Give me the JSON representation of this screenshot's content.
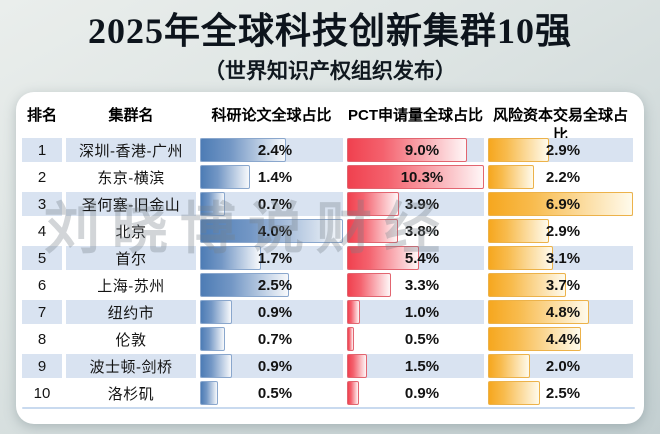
{
  "header": {
    "title": "2025年全球科技创新集群10强",
    "subtitle": "（世界知识产权组织发布）"
  },
  "watermark": "刘晓博说财经",
  "table": {
    "columns": [
      "排名",
      "集群名",
      "科研论文全球占比",
      "PCT申请量全球占比",
      "风险资本交易全球占比"
    ],
    "bar_max": {
      "paper": 4.0,
      "pct": 10.3,
      "vc": 6.9
    },
    "rows": [
      {
        "rank": "1",
        "cluster": "深圳-香港-广州",
        "paper": "2.4%",
        "pct": "9.0%",
        "vc": "2.9%"
      },
      {
        "rank": "2",
        "cluster": "东京-横滨",
        "paper": "1.4%",
        "pct": "10.3%",
        "vc": "2.2%"
      },
      {
        "rank": "3",
        "cluster": "圣何塞-旧金山",
        "paper": "0.7%",
        "pct": "3.9%",
        "vc": "6.9%"
      },
      {
        "rank": "4",
        "cluster": "北京",
        "paper": "4.0%",
        "pct": "3.8%",
        "vc": "2.9%"
      },
      {
        "rank": "5",
        "cluster": "首尔",
        "paper": "1.7%",
        "pct": "5.4%",
        "vc": "3.1%"
      },
      {
        "rank": "6",
        "cluster": "上海-苏州",
        "paper": "2.5%",
        "pct": "3.3%",
        "vc": "3.7%"
      },
      {
        "rank": "7",
        "cluster": "纽约市",
        "paper": "0.9%",
        "pct": "1.0%",
        "vc": "4.8%"
      },
      {
        "rank": "8",
        "cluster": "伦敦",
        "paper": "0.7%",
        "pct": "0.5%",
        "vc": "4.4%"
      },
      {
        "rank": "9",
        "cluster": "波士顿-剑桥",
        "paper": "0.9%",
        "pct": "1.5%",
        "vc": "2.0%"
      },
      {
        "rank": "10",
        "cluster": "洛杉矶",
        "paper": "0.5%",
        "pct": "0.9%",
        "vc": "2.5%"
      }
    ]
  },
  "chart_data": {
    "type": "bar",
    "title": "2025年全球科技创新集群10强",
    "subtitle": "（世界知识产权组织发布）",
    "unit": "%",
    "categories": [
      "深圳-香港-广州",
      "东京-横滨",
      "圣何塞-旧金山",
      "北京",
      "首尔",
      "上海-苏州",
      "纽约市",
      "伦敦",
      "波士顿-剑桥",
      "洛杉矶"
    ],
    "ranks": [
      1,
      2,
      3,
      4,
      5,
      6,
      7,
      8,
      9,
      10
    ],
    "series": [
      {
        "name": "科研论文全球占比",
        "values": [
          2.4,
          1.4,
          0.7,
          4.0,
          1.7,
          2.5,
          0.9,
          0.7,
          0.9,
          0.5
        ],
        "color": "#4d7cb5",
        "axis_max": 4.0
      },
      {
        "name": "PCT申请量全球占比",
        "values": [
          9.0,
          10.3,
          3.9,
          3.8,
          5.4,
          3.3,
          1.0,
          0.5,
          1.5,
          0.9
        ],
        "color": "#f0414f",
        "axis_max": 10.3
      },
      {
        "name": "风险资本交易全球占比",
        "values": [
          2.9,
          2.2,
          6.9,
          2.9,
          3.1,
          3.7,
          4.8,
          4.4,
          2.0,
          2.5
        ],
        "color": "#f6a71f",
        "axis_max": 6.9
      }
    ],
    "layout": {
      "orientation": "horizontal",
      "grid": false,
      "legend_position": "column-headers",
      "stripe_color": "#d9e3f1"
    }
  },
  "colors": {
    "paper_bar": "#4d7cb5",
    "pct_bar": "#f0414f",
    "vc_bar": "#f6a71f",
    "row_stripe": "#d9e3f1"
  }
}
